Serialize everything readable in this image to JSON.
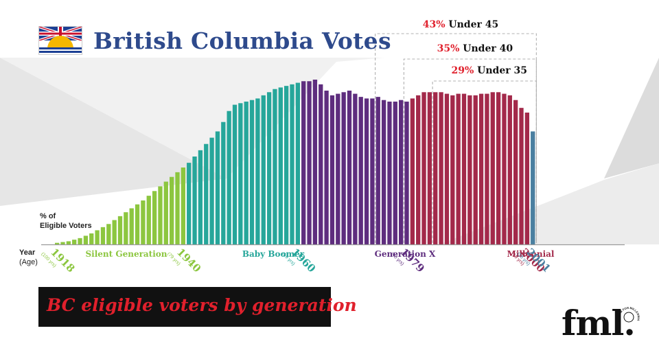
{
  "header": {
    "title": "British Columbia Votes"
  },
  "banner": {
    "text": "BC eligible voters by generation"
  },
  "logo": {
    "text": "fml.",
    "seal_text": "FORUM FOR MILLENNIAL LEADERSHIP"
  },
  "colors": {
    "title": "#2e4a8c",
    "silent": "#8cc63f",
    "boomer": "#26a69a",
    "genx": "#5e2d7e",
    "millennial": "#a3294a",
    "genz": "#4a7fa0",
    "highlight_red": "#e0202c",
    "banner_bg": "#111111"
  },
  "chart_data": {
    "type": "bar",
    "ylabel": "% of Eligible Voters",
    "xlabel": "Year (Age)",
    "ylim": [
      0,
      100
    ],
    "legend": "none",
    "grid": false,
    "series": [
      {
        "name": "Silent Generation",
        "start_year": 1918,
        "end_year": 1940,
        "values": [
          1,
          1.5,
          2,
          3,
          4,
          5.5,
          7,
          9,
          11,
          13,
          15.5,
          18,
          20.5,
          23,
          25.5,
          28,
          31,
          34,
          37,
          40,
          43,
          46,
          49
        ]
      },
      {
        "name": "Baby Boomer",
        "start_year": 1941,
        "end_year": 1960,
        "values": [
          52,
          56,
          60,
          64,
          68,
          72,
          78,
          85,
          89,
          90,
          91,
          92,
          93,
          95,
          97,
          99,
          100,
          101,
          102,
          103
        ]
      },
      {
        "name": "Generation X",
        "start_year": 1961,
        "end_year": 1979,
        "values": [
          104,
          104,
          105,
          102,
          98,
          95,
          96,
          97,
          98,
          96,
          94,
          93,
          93,
          94,
          92,
          91,
          91,
          92,
          91
        ]
      },
      {
        "name": "Millennial",
        "start_year": 1980,
        "end_year": 2000,
        "values": [
          93,
          95,
          97,
          97,
          97,
          97,
          96,
          95,
          96,
          96,
          95,
          95,
          96,
          96,
          97,
          97,
          96,
          95,
          92,
          87,
          84
        ]
      },
      {
        "name": "",
        "start_year": 2001,
        "end_year": 2001,
        "values": [
          72
        ]
      }
    ],
    "generation_labels": [
      "Silent Generation",
      "Baby Boomer",
      "Generation X",
      "Millennial"
    ],
    "year_labels": [
      {
        "year": "1918",
        "age": "(100 yrs)"
      },
      {
        "year": "1940",
        "age": "(79 yrs)"
      },
      {
        "year": "1960",
        "age": "(59 yrs)"
      },
      {
        "year": "1979",
        "age": "(40 yrs)"
      },
      {
        "year": "2000",
        "age": "(19 yrs)"
      },
      {
        "year": "2001",
        "age": "(18 yrs)"
      }
    ],
    "annotations": [
      {
        "pct": "43%",
        "label": "Under 45",
        "start_year": 1974
      },
      {
        "pct": "35%",
        "label": "Under 40",
        "start_year": 1979
      },
      {
        "pct": "29%",
        "label": "Under 35",
        "start_year": 1984
      }
    ],
    "axis_labels": {
      "year": "Year",
      "age": "(Age)",
      "pct_line1": "% of",
      "pct_line2": "Eligible Voters"
    }
  }
}
